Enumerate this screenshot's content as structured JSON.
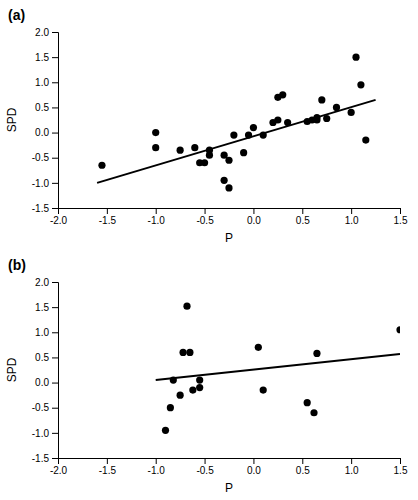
{
  "chart_data": [
    {
      "type": "scatter",
      "title": "(a)",
      "xlabel": "P",
      "ylabel": "SPD",
      "series": [
        {
          "type": "scatter",
          "color": "#000000",
          "marker": "circle",
          "x": [
            -1.55,
            -1.0,
            -1.0,
            -0.75,
            -0.6,
            -0.55,
            -0.5,
            -0.45,
            -0.45,
            -0.3,
            -0.3,
            -0.25,
            -0.25,
            -0.2,
            -0.1,
            -0.05,
            0.0,
            0.1,
            0.2,
            0.25,
            0.25,
            0.3,
            0.35,
            0.55,
            0.6,
            0.65,
            0.65,
            0.7,
            0.75,
            0.85,
            1.0,
            1.05,
            1.1,
            1.15
          ],
          "values": [
            -0.65,
            0.0,
            -0.3,
            -0.35,
            -0.3,
            -0.6,
            -0.6,
            -0.45,
            -0.35,
            -0.45,
            -0.95,
            -1.1,
            -0.55,
            -0.05,
            -0.4,
            -0.05,
            0.1,
            -0.05,
            0.2,
            0.25,
            0.7,
            0.75,
            0.2,
            0.22,
            0.25,
            0.3,
            0.25,
            0.65,
            0.28,
            0.5,
            0.4,
            1.5,
            0.95,
            -0.15
          ]
        },
        {
          "type": "line",
          "color": "#000000",
          "line_style": "solid",
          "x": [
            -1.6,
            1.25
          ],
          "values": [
            -1.0,
            0.65
          ]
        }
      ],
      "xlim": [
        -2.0,
        1.5
      ],
      "ylim": [
        -1.5,
        2.0
      ],
      "xticks": [
        {
          "value": -2.0,
          "label": "-2.0"
        },
        -1.5,
        {
          "value": -1.0,
          "label": "-1.0"
        },
        -0.5,
        {
          "value": 0.0,
          "label": "0.0"
        },
        0.5,
        {
          "value": 1.0,
          "label": "1.0"
        },
        1.5
      ],
      "yticks": [
        -1.5,
        {
          "value": -1.0,
          "label": "-1.0"
        },
        -0.5,
        {
          "value": 0.0,
          "label": "0.0"
        },
        0.5,
        {
          "value": 1.0,
          "label": "1.0"
        },
        1.5,
        {
          "value": 2.0,
          "label": "2.0"
        }
      ],
      "grid": false
    },
    {
      "type": "scatter",
      "title": "(b)",
      "xlabel": "P",
      "ylabel": "SPD",
      "series": [
        {
          "type": "scatter",
          "color": "#000000",
          "marker": "circle",
          "x": [
            -0.9,
            -0.85,
            -0.82,
            -0.75,
            -0.72,
            -0.68,
            -0.65,
            -0.62,
            -0.55,
            -0.55,
            0.05,
            0.1,
            0.55,
            0.62,
            0.65,
            1.5
          ],
          "values": [
            -0.95,
            -0.5,
            0.05,
            -0.25,
            0.6,
            1.52,
            0.6,
            -0.15,
            -0.1,
            0.05,
            0.7,
            -0.15,
            -0.4,
            -0.6,
            0.58,
            1.05
          ]
        },
        {
          "type": "line",
          "color": "#000000",
          "line_style": "solid",
          "x": [
            -1.0,
            1.5
          ],
          "values": [
            0.05,
            0.57
          ]
        }
      ],
      "xlim": [
        -2.0,
        1.5
      ],
      "ylim": [
        -1.5,
        2.0
      ],
      "xticks": [
        {
          "value": -2.0,
          "label": "-2.0"
        },
        -1.5,
        {
          "value": -1.0,
          "label": "-1.0"
        },
        -0.5,
        {
          "value": 0.0,
          "label": "0.0"
        },
        0.5,
        {
          "value": 1.0,
          "label": "1.0"
        },
        1.5
      ],
      "yticks": [
        -1.5,
        {
          "value": -1.0,
          "label": "-1.0"
        },
        -0.5,
        {
          "value": 0.0,
          "label": "0.0"
        },
        0.5,
        {
          "value": 1.0,
          "label": "1.0"
        },
        1.5,
        {
          "value": 2.0,
          "label": "2.0"
        }
      ],
      "grid": false
    }
  ]
}
